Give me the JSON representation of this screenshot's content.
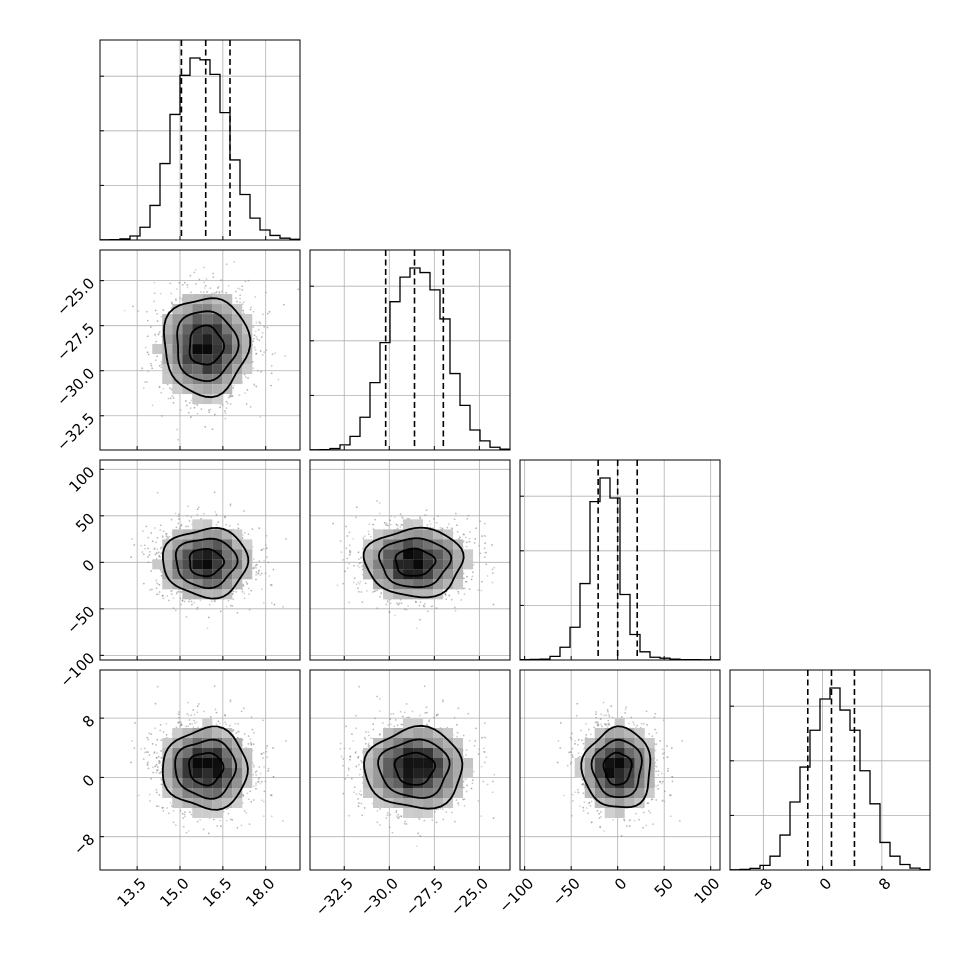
{
  "chart_data": {
    "type": "corner",
    "title": "",
    "grid": true,
    "params": [
      {
        "mean": 15.9,
        "sd": 0.85,
        "range": [
          12.2,
          19.2
        ],
        "ticks": [
          13.5,
          15.0,
          16.5,
          18.0
        ],
        "tick_labels": [
          "13.5",
          "15.0",
          "16.5",
          "18.0"
        ],
        "quantiles": [
          15.05,
          15.9,
          16.75
        ],
        "hist_counts": [
          1,
          2,
          6,
          22,
          70,
          190,
          420,
          690,
          905,
          1000,
          990,
          910,
          700,
          440,
          250,
          120,
          55,
          25,
          10,
          4
        ]
      },
      {
        "mean": -28.6,
        "sd": 1.55,
        "range": [
          -34.4,
          -23.3
        ],
        "ticks": [
          -32.5,
          -30.0,
          -27.5,
          -25.0
        ],
        "tick_labels": [
          "−32.5",
          "−30.0",
          "−27.5",
          "−25.0"
        ],
        "quantiles": [
          -30.2,
          -28.6,
          -27.0
        ],
        "hist_counts": [
          1,
          2,
          8,
          28,
          75,
          180,
          370,
          590,
          815,
          950,
          1000,
          975,
          880,
          720,
          420,
          245,
          110,
          50,
          15,
          5
        ]
      },
      {
        "mean": 0,
        "sd": 21,
        "range": [
          -105,
          110
        ],
        "ticks": [
          -100,
          -50,
          0,
          50,
          100
        ],
        "tick_labels": [
          "−100",
          "−50",
          "0",
          "50",
          "100"
        ],
        "quantiles": [
          -21,
          0,
          21
        ],
        "hist_counts": [
          2,
          3,
          5,
          20,
          70,
          180,
          420,
          870,
          1000,
          890,
          360,
          140,
          45,
          15,
          10,
          5,
          2,
          2,
          1,
          1
        ]
      },
      {
        "mean": 1.2,
        "sd": 3.1,
        "range": [
          -12.5,
          14.5
        ],
        "ticks": [
          -8,
          0,
          8
        ],
        "tick_labels": [
          "−8",
          "0",
          "8"
        ],
        "quantiles": [
          -2.0,
          1.2,
          4.3
        ],
        "hist_counts": [
          1,
          3,
          9,
          25,
          75,
          190,
          370,
          560,
          760,
          930,
          990,
          870,
          760,
          540,
          360,
          150,
          75,
          30,
          10,
          2
        ]
      }
    ]
  }
}
